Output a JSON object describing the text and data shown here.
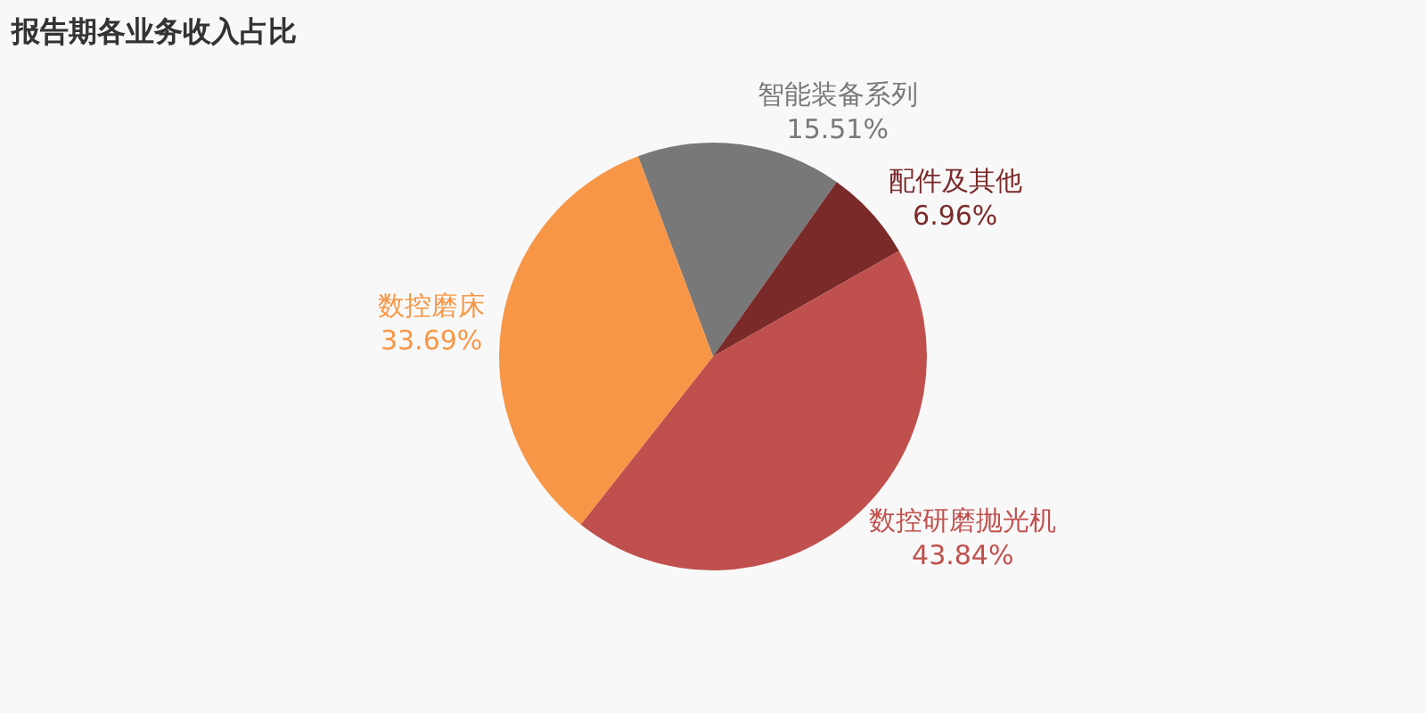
{
  "chart_data": {
    "type": "pie",
    "title": "报告期各业务收入占比",
    "categories": [
      "智能装备系列",
      "配件及其他",
      "数控研磨抛光机",
      "数控磨床"
    ],
    "values": [
      15.51,
      6.96,
      43.84,
      33.69
    ],
    "colors": [
      "#787878",
      "#7b2a2a",
      "#c0504d",
      "#f79646"
    ],
    "value_labels": [
      "15.51%",
      "6.96%",
      "43.84%",
      "33.69%"
    ],
    "legend": false
  }
}
